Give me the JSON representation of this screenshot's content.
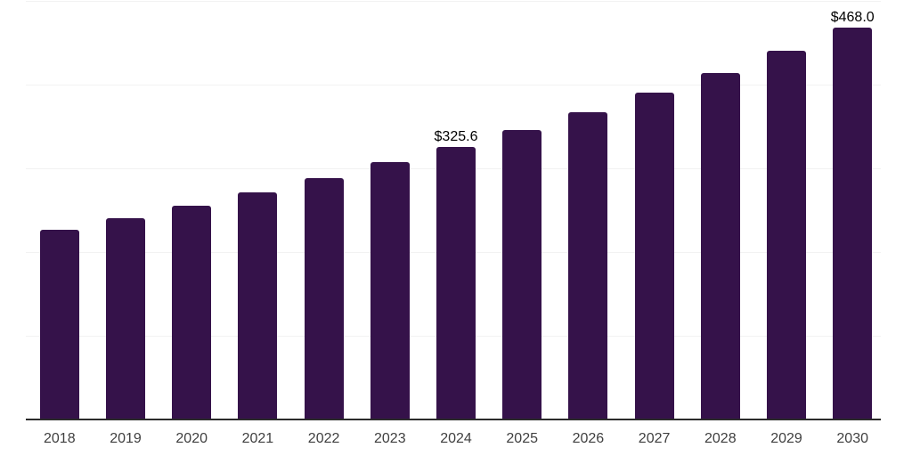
{
  "chart_data": {
    "type": "bar",
    "categories": [
      "2018",
      "2019",
      "2020",
      "2021",
      "2022",
      "2023",
      "2024",
      "2025",
      "2026",
      "2027",
      "2028",
      "2029",
      "2030"
    ],
    "values": [
      226.2,
      240.1,
      255.0,
      270.9,
      288.8,
      307.3,
      325.6,
      346.0,
      367.0,
      391.0,
      414.3,
      440.5,
      468.0
    ],
    "value_labels": [
      "",
      "",
      "",
      "",
      "",
      "",
      "$325.6",
      "",
      "",
      "",
      "",
      "",
      "$468.0"
    ],
    "title": "",
    "xlabel": "",
    "ylabel": "",
    "ylim": [
      0,
      500
    ],
    "grid": true,
    "gridline_step": 100,
    "legend_position": "none",
    "y_axis_tick_labels_visible": false,
    "colors": {
      "bar": "#35124A",
      "axis_line": "#2b2b2b",
      "gridline": "#f2f2f2",
      "tick_label": "#404040",
      "value_label": "#000000",
      "background": "#ffffff"
    }
  }
}
